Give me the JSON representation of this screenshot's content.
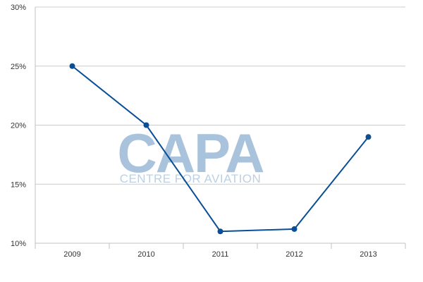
{
  "watermark": {
    "main": "CAPA",
    "sub": "CENTRE FOR AVIATION"
  },
  "chart_data": {
    "type": "line",
    "categories": [
      "2009",
      "2010",
      "2011",
      "2012",
      "2013"
    ],
    "series": [
      {
        "values": [
          25,
          20,
          11,
          11.2,
          19
        ]
      }
    ],
    "y_ticks": [
      10,
      15,
      20,
      25,
      30
    ],
    "y_tick_labels": [
      "10%",
      "15%",
      "20%",
      "25%",
      "30%"
    ],
    "ylim": [
      10,
      30
    ],
    "grid": true,
    "legend": "none",
    "line_color": "#0a4f96",
    "grid_color": "#cccccc"
  }
}
